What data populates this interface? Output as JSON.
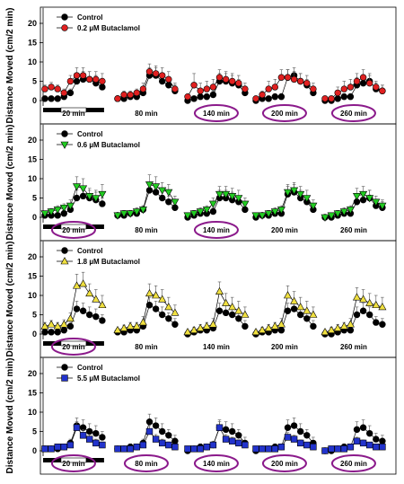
{
  "chart_data": [
    {
      "type": "line",
      "ylabel": "Distance Moved (cm/2 min)",
      "ylim": [
        0,
        24
      ],
      "yticks": [
        0,
        5,
        10,
        15,
        20
      ],
      "blocks": [
        "20 min",
        "80 min",
        "140 min",
        "200 min",
        "260 min"
      ],
      "circled": [
        2,
        3,
        4
      ],
      "series": [
        {
          "name": "Control",
          "color": "#000000",
          "marker": "circle",
          "values": [
            [
              0.5,
              0.5,
              0.5,
              1,
              2,
              5,
              5.5,
              5.5,
              4.5,
              3.5
            ],
            [
              0.5,
              0.5,
              1,
              1,
              2,
              6.5,
              6.5,
              5,
              4,
              2.5
            ],
            [
              0,
              0.5,
              1,
              1,
              1.5,
              5,
              5,
              4.5,
              4,
              2
            ],
            [
              0,
              0.5,
              0.5,
              1,
              1,
              6,
              6.5,
              5,
              4,
              2
            ],
            [
              0,
              0,
              0.5,
              1,
              1,
              4,
              4.5,
              5,
              3,
              2.5
            ]
          ],
          "err": [
            [
              0.5,
              0.5,
              0.5,
              0.8,
              1,
              2,
              2,
              2,
              2,
              1.5
            ],
            [
              0.5,
              0.5,
              0.8,
              0.8,
              1,
              2,
              2,
              2,
              1.5,
              1.5
            ],
            [
              0.3,
              0.5,
              0.8,
              0.8,
              1,
              2,
              2,
              2,
              1.5,
              1.5
            ],
            [
              0.3,
              0.5,
              0.5,
              0.8,
              0.8,
              2,
              2,
              2,
              1.5,
              1.5
            ],
            [
              0.3,
              0.3,
              0.5,
              0.8,
              0.8,
              2,
              2,
              2,
              1.5,
              1.5
            ]
          ]
        },
        {
          "name": "0.2 µM Butaclamol",
          "color": "#e02020",
          "marker": "circle",
          "values": [
            [
              3,
              3.5,
              3,
              2,
              5,
              6.5,
              6.5,
              5.5,
              5.5,
              5
            ],
            [
              0.5,
              1.5,
              1.5,
              2,
              3,
              7.5,
              7,
              6.5,
              5.5,
              3
            ],
            [
              1,
              4,
              2.5,
              3,
              3.5,
              6,
              5.5,
              5,
              4.5,
              3
            ],
            [
              0.5,
              1.5,
              3,
              3.5,
              6,
              6,
              5.5,
              5,
              4.5,
              3
            ],
            [
              0.5,
              0.5,
              2,
              3,
              3.5,
              5,
              6,
              4.5,
              3.5,
              2.5
            ]
          ],
          "err": [
            [
              1,
              1.2,
              1,
              1,
              1.5,
              2,
              2,
              2,
              2,
              2
            ],
            [
              0.5,
              1,
              1,
              1,
              1.5,
              2,
              2,
              2,
              2,
              1.5
            ],
            [
              0.5,
              3,
              2,
              2,
              2,
              2,
              2,
              2,
              2,
              1.5
            ],
            [
              0.5,
              1,
              2,
              2,
              2,
              2,
              2,
              2,
              2,
              1.5
            ],
            [
              0.5,
              0.5,
              1.5,
              2,
              2,
              2,
              2,
              2,
              1.5,
              1.5
            ]
          ]
        }
      ]
    },
    {
      "type": "line",
      "ylabel": "Distance Moved (cm/2 min)",
      "ylim": [
        0,
        24
      ],
      "yticks": [
        0,
        5,
        10,
        15,
        20
      ],
      "blocks": [
        "20 min",
        "80 min",
        "140 min",
        "200 min",
        "260 min"
      ],
      "circled": [
        0,
        2
      ],
      "series": [
        {
          "name": "Control",
          "color": "#000000",
          "marker": "circle",
          "values": [
            [
              0.5,
              0.5,
              0.5,
              1,
              2,
              5,
              5.5,
              5,
              4.5,
              3.5
            ],
            [
              0.5,
              0.5,
              1,
              1,
              2,
              7,
              6.5,
              5,
              4,
              2.5
            ],
            [
              0,
              0.5,
              1,
              1,
              1.5,
              5,
              5,
              4.5,
              4,
              2
            ],
            [
              0,
              0.5,
              0.5,
              1,
              1,
              6,
              6.5,
              5,
              4,
              2
            ],
            [
              0,
              0,
              0.5,
              1,
              1,
              4,
              4.5,
              5,
              3,
              2.5
            ]
          ],
          "err": [
            [
              0.5,
              0.5,
              0.5,
              0.8,
              1,
              2,
              2,
              2,
              2,
              1.5
            ],
            [
              0.5,
              0.5,
              0.8,
              0.8,
              1,
              2,
              2,
              2,
              1.5,
              1.5
            ],
            [
              0.3,
              0.5,
              0.8,
              0.8,
              1,
              2,
              2,
              2,
              1.5,
              1.5
            ],
            [
              0.3,
              0.5,
              0.5,
              0.8,
              0.8,
              2,
              2,
              2,
              1.5,
              1.5
            ],
            [
              0.3,
              0.3,
              0.5,
              0.8,
              0.8,
              2,
              2,
              2,
              1.5,
              1.5
            ]
          ]
        },
        {
          "name": "0.6 µM Butaclamol",
          "color": "#22cc22",
          "marker": "triangle-down",
          "values": [
            [
              1,
              1.5,
              2,
              2.5,
              3,
              8,
              7.5,
              5.5,
              5,
              6
            ],
            [
              0.5,
              1,
              1,
              1.5,
              2,
              8.5,
              8,
              7,
              6.5,
              4
            ],
            [
              0.5,
              1,
              1.5,
              2,
              3.5,
              6,
              6,
              5.5,
              5,
              3.5
            ],
            [
              0.5,
              0.5,
              1,
              1.5,
              2,
              6.5,
              7,
              6,
              5,
              3
            ],
            [
              0,
              0.5,
              1,
              1.5,
              2,
              5.5,
              6,
              5,
              4,
              3
            ]
          ],
          "err": [
            [
              0.5,
              0.8,
              1,
              1,
              1.5,
              2.5,
              2.5,
              2,
              2,
              2.5
            ],
            [
              0.5,
              0.8,
              0.8,
              1,
              1,
              2.5,
              2.5,
              2,
              2,
              1.5
            ],
            [
              0.5,
              0.8,
              1,
              1,
              1.5,
              2,
              2,
              2,
              2,
              1.5
            ],
            [
              0.5,
              0.5,
              0.8,
              1,
              1,
              2,
              2,
              2,
              2,
              1.5
            ],
            [
              0.3,
              0.5,
              0.8,
              1,
              1,
              2,
              2,
              2,
              1.5,
              1.5
            ]
          ]
        }
      ]
    },
    {
      "type": "line",
      "ylabel": "Distance Moved (cm/2 min)",
      "ylim": [
        0,
        24
      ],
      "yticks": [
        0,
        5,
        10,
        15,
        20
      ],
      "blocks": [
        "20 min",
        "80 min",
        "140 min",
        "200 min",
        "260 min"
      ],
      "circled": [
        0
      ],
      "series": [
        {
          "name": "Control",
          "color": "#000000",
          "marker": "circle",
          "values": [
            [
              0.5,
              0.5,
              0.5,
              1,
              2,
              6.5,
              6,
              5,
              4.5,
              3.5
            ],
            [
              0.5,
              0.5,
              1,
              1,
              2,
              7.5,
              6.5,
              5,
              4,
              2.5
            ],
            [
              0,
              0.5,
              1,
              1,
              1.5,
              6,
              5.5,
              5,
              4,
              2
            ],
            [
              0,
              0.5,
              0.5,
              1,
              1,
              6,
              6.5,
              5,
              4,
              2
            ],
            [
              0,
              0,
              0.5,
              1,
              1,
              5,
              6,
              5,
              3,
              2.5
            ]
          ],
          "err": [
            [
              0.5,
              0.5,
              0.5,
              0.8,
              1,
              2,
              2,
              2,
              2,
              1.5
            ],
            [
              0.5,
              0.5,
              0.8,
              0.8,
              1,
              2,
              2,
              2,
              1.5,
              1.5
            ],
            [
              0.3,
              0.5,
              0.8,
              0.8,
              1,
              2,
              2,
              2,
              1.5,
              1.5
            ],
            [
              0.3,
              0.5,
              0.5,
              0.8,
              0.8,
              2,
              2,
              2,
              1.5,
              1.5
            ],
            [
              0.3,
              0.3,
              0.5,
              0.8,
              0.8,
              2,
              2,
              2,
              1.5,
              1.5
            ]
          ]
        },
        {
          "name": "1.8 µM Butaclamol",
          "color": "#f0e040",
          "marker": "triangle-up",
          "values": [
            [
              2,
              2.5,
              2,
              2.5,
              4,
              12.5,
              13,
              10.5,
              9,
              7.5
            ],
            [
              1,
              1.5,
              2,
              2,
              3,
              10.5,
              10,
              9,
              7,
              5.5
            ],
            [
              0.5,
              1,
              1.5,
              2,
              2.5,
              11,
              8,
              7,
              6,
              5
            ],
            [
              0.5,
              1,
              1.5,
              2,
              2.5,
              10,
              8.5,
              7,
              6,
              5
            ],
            [
              0.5,
              1,
              1.5,
              2,
              2.5,
              9.5,
              9,
              8,
              7.5,
              7
            ]
          ],
          "err": [
            [
              1,
              1,
              1,
              1.2,
              1.5,
              3,
              3,
              2.5,
              2.5,
              2.5
            ],
            [
              0.5,
              0.8,
              1,
              1,
              1.5,
              2.5,
              2.5,
              2.5,
              2.5,
              2
            ],
            [
              0.5,
              0.8,
              1,
              1,
              1.5,
              2.5,
              2.5,
              2.5,
              2.5,
              2
            ],
            [
              0.5,
              0.8,
              1,
              1,
              1.5,
              2.5,
              2.5,
              2.5,
              2.5,
              2
            ],
            [
              0.5,
              0.8,
              1,
              1,
              1.5,
              2.5,
              2.5,
              2.5,
              2.5,
              2.5
            ]
          ]
        }
      ]
    },
    {
      "type": "line",
      "ylabel": "Distance Moved (cm/2 min)",
      "ylim": [
        0,
        24
      ],
      "yticks": [
        0,
        5,
        10,
        15,
        20
      ],
      "blocks": [
        "20 min",
        "80 min",
        "140 min",
        "200 min",
        "260 min"
      ],
      "circled": [
        0,
        1,
        2,
        3,
        4
      ],
      "series": [
        {
          "name": "Control",
          "color": "#000000",
          "marker": "circle",
          "values": [
            [
              0.5,
              0.5,
              0.5,
              1,
              2,
              6.5,
              6,
              5,
              4.5,
              3.5
            ],
            [
              0.5,
              0.5,
              1,
              1,
              2,
              7.5,
              6.5,
              5,
              4,
              2.5
            ],
            [
              0,
              0.5,
              1,
              1,
              1.5,
              6,
              5.5,
              5,
              4,
              2
            ],
            [
              0,
              0.5,
              0.5,
              1,
              1,
              6,
              6.5,
              5,
              4,
              2
            ],
            [
              0,
              0,
              0.5,
              1,
              1,
              5.5,
              6,
              4.5,
              3,
              2.5
            ]
          ],
          "err": [
            [
              0.5,
              0.5,
              0.5,
              0.8,
              1,
              2,
              2,
              2,
              2,
              1.5
            ],
            [
              0.5,
              0.5,
              0.8,
              0.8,
              1,
              2,
              2,
              2,
              1.5,
              1.5
            ],
            [
              0.3,
              0.5,
              0.8,
              0.8,
              1,
              2,
              2,
              2,
              1.5,
              1.5
            ],
            [
              0.3,
              0.5,
              0.5,
              0.8,
              0.8,
              2,
              2,
              2,
              1.5,
              1.5
            ],
            [
              0.3,
              0.3,
              0.5,
              0.8,
              0.8,
              2,
              2,
              2,
              1.5,
              1.5
            ]
          ]
        },
        {
          "name": "5.5 µM Butaclamol",
          "color": "#2233cc",
          "marker": "square",
          "values": [
            [
              0.5,
              0.5,
              1,
              1,
              1.5,
              6,
              4,
              3,
              2,
              1.5
            ],
            [
              0.5,
              0.5,
              0.5,
              1,
              1.5,
              5,
              3,
              2,
              1.5,
              1
            ],
            [
              0.5,
              0.5,
              0.5,
              1,
              1.5,
              6,
              3,
              2.5,
              2,
              1.5
            ],
            [
              0.5,
              0.5,
              0.5,
              0.5,
              1,
              3.5,
              3,
              2,
              1.5,
              1
            ],
            [
              0,
              0.5,
              0.5,
              0.5,
              1,
              2.5,
              2,
              1.5,
              1,
              1
            ]
          ],
          "err": [
            [
              0.3,
              0.5,
              0.5,
              0.5,
              0.8,
              1.5,
              1.5,
              1.2,
              1,
              0.8
            ],
            [
              0.3,
              0.3,
              0.3,
              0.5,
              0.8,
              1.5,
              1.2,
              1,
              0.8,
              0.5
            ],
            [
              0.3,
              0.3,
              0.3,
              0.5,
              0.8,
              1.5,
              1.2,
              1,
              0.8,
              0.5
            ],
            [
              0.3,
              0.3,
              0.3,
              0.3,
              0.5,
              1.2,
              1,
              0.8,
              0.5,
              0.5
            ],
            [
              0.3,
              0.3,
              0.3,
              0.3,
              0.5,
              1,
              0.8,
              0.5,
              0.5,
              0.5
            ]
          ]
        }
      ]
    }
  ]
}
